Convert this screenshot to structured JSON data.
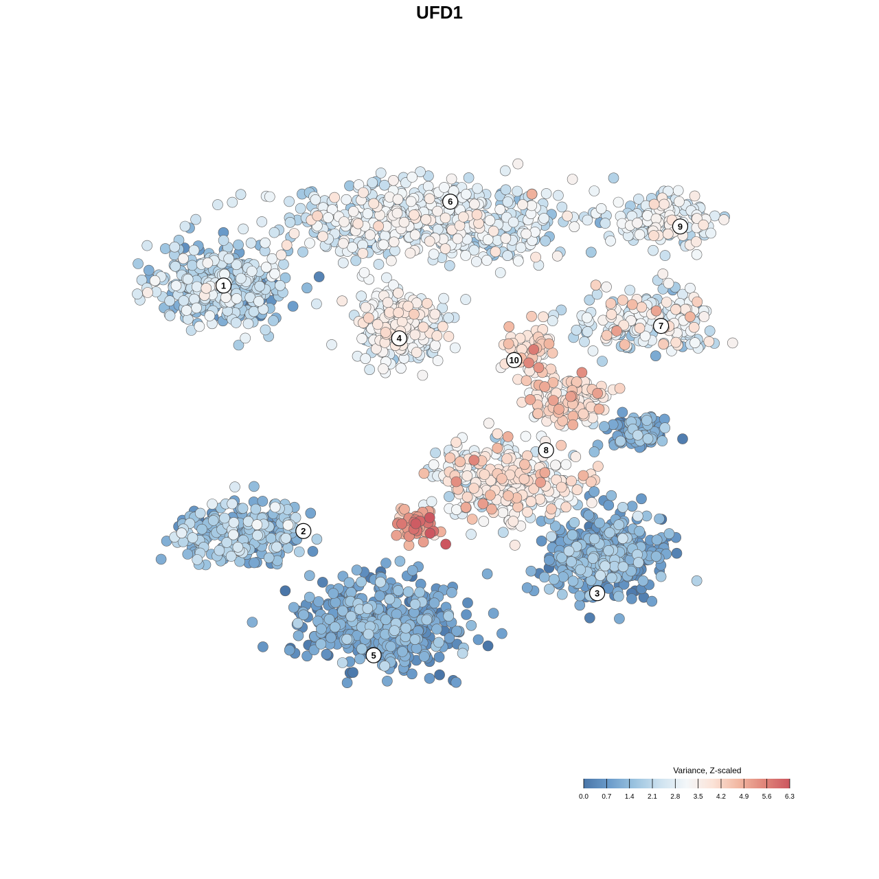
{
  "chart_data": {
    "type": "scatter",
    "title": "UFD1",
    "xlabel": "",
    "ylabel": "",
    "grid": false,
    "axes_visible": false,
    "xlim": [
      0,
      100
    ],
    "ylim": [
      0,
      100
    ],
    "color_scale": {
      "title": "Variance, Z-scaled",
      "min": 0.0,
      "max": 6.3,
      "ticks": [
        "0.0",
        "0.7",
        "1.4",
        "2.1",
        "2.8",
        "3.5",
        "4.2",
        "4.9",
        "5.6",
        "6.3"
      ],
      "palette": [
        "#4a76a8",
        "#6b9ccb",
        "#9cc4e0",
        "#cfe3f0",
        "#f4f7f9",
        "#fbe3d8",
        "#f2b8a2",
        "#e0857a",
        "#cc5760"
      ],
      "placement": "bottom-right"
    },
    "clusters": [
      {
        "label": "1",
        "x": 13.5,
        "y": 74.5,
        "spread_x": 9.0,
        "spread_y": 6.0,
        "count": 420,
        "mean": 1.8,
        "sd": 0.7
      },
      {
        "label": "2",
        "x": 16.0,
        "y": 35.0,
        "spread_x": 9.0,
        "spread_y": 5.0,
        "count": 220,
        "mean": 1.5,
        "sd": 0.6
      },
      {
        "label": "3",
        "x": 73.0,
        "y": 31.0,
        "spread_x": 8.0,
        "spread_y": 6.0,
        "count": 380,
        "mean": 1.0,
        "sd": 0.5
      },
      {
        "label": "4",
        "x": 41.0,
        "y": 68.0,
        "spread_x": 6.0,
        "spread_y": 5.5,
        "count": 330,
        "mean": 2.9,
        "sd": 0.6
      },
      {
        "label": "5",
        "x": 38.0,
        "y": 20.0,
        "spread_x": 11.0,
        "spread_y": 6.5,
        "count": 520,
        "mean": 0.8,
        "sd": 0.5
      },
      {
        "label": "6",
        "x": 45.0,
        "y": 85.0,
        "spread_x": 21.0,
        "spread_y": 5.5,
        "count": 540,
        "mean": 2.6,
        "sd": 0.6
      },
      {
        "label": "7",
        "x": 80.0,
        "y": 69.0,
        "spread_x": 10.0,
        "spread_y": 4.5,
        "count": 200,
        "mean": 2.9,
        "sd": 0.8
      },
      {
        "label": "8",
        "x": 57.0,
        "y": 43.0,
        "spread_x": 10.0,
        "spread_y": 5.5,
        "count": 340,
        "mean": 3.3,
        "sd": 0.8
      },
      {
        "label": "9",
        "x": 83.0,
        "y": 85.0,
        "spread_x": 7.0,
        "spread_y": 3.5,
        "count": 150,
        "mean": 2.7,
        "sd": 0.6
      },
      {
        "label": "10",
        "x": 62.0,
        "y": 64.0,
        "spread_x": 3.5,
        "spread_y": 3.5,
        "count": 70,
        "mean": 3.8,
        "sd": 0.6
      },
      {
        "label": "",
        "x": 44.0,
        "y": 36.0,
        "spread_x": 3.5,
        "spread_y": 3.0,
        "count": 45,
        "mean": 5.2,
        "sd": 0.6
      },
      {
        "label": "",
        "x": 78.0,
        "y": 51.0,
        "spread_x": 4.5,
        "spread_y": 2.5,
        "count": 90,
        "mean": 1.0,
        "sd": 0.5
      },
      {
        "label": "",
        "x": 68.0,
        "y": 56.0,
        "spread_x": 6.0,
        "spread_y": 3.5,
        "count": 120,
        "mean": 3.8,
        "sd": 0.6
      }
    ],
    "label_positions": [
      {
        "label": "1",
        "x": 13.5,
        "y": 74.5
      },
      {
        "label": "2",
        "x": 26.0,
        "y": 35.0
      },
      {
        "label": "3",
        "x": 72.0,
        "y": 25.0
      },
      {
        "label": "4",
        "x": 41.0,
        "y": 66.0
      },
      {
        "label": "5",
        "x": 37.0,
        "y": 15.0
      },
      {
        "label": "6",
        "x": 49.0,
        "y": 88.0
      },
      {
        "label": "7",
        "x": 82.0,
        "y": 68.0
      },
      {
        "label": "8",
        "x": 64.0,
        "y": 48.0
      },
      {
        "label": "9",
        "x": 85.0,
        "y": 84.0
      },
      {
        "label": "10",
        "x": 59.0,
        "y": 62.5
      }
    ]
  }
}
